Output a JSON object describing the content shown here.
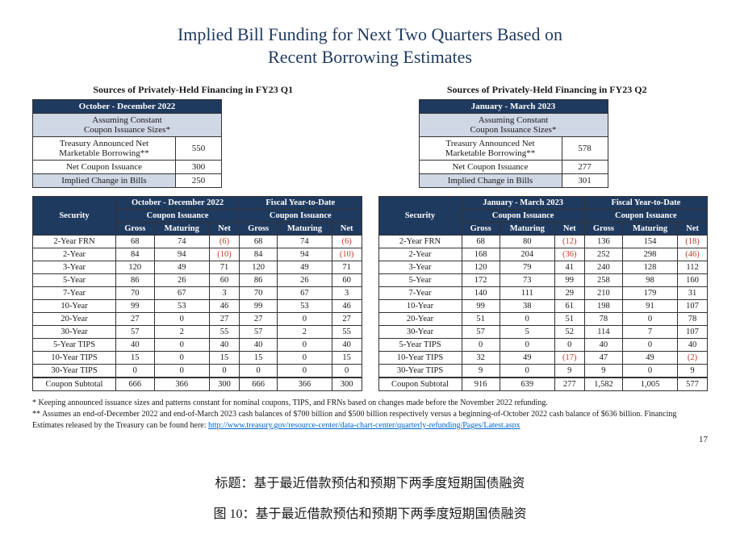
{
  "title_l1": "Implied Bill Funding for Next Two Quarters Based on",
  "title_l2": "Recent Borrowing Estimates",
  "left": {
    "section": "Sources of Privately-Held Financing in FY23 Q1",
    "period": "October - December 2022",
    "assume1": "Assuming Constant",
    "assume2": "Coupon Issuance Sizes*",
    "rows": [
      {
        "l": "Treasury Announced Net Marketable Borrowing**",
        "v": "550"
      },
      {
        "l": "Net Coupon Issuance",
        "v": "300"
      },
      {
        "l": "Implied Change in Bills",
        "v": "250"
      }
    ]
  },
  "right": {
    "section": "Sources of Privately-Held Financing in FY23 Q2",
    "period": "January - March 2023",
    "assume1": "Assuming Constant",
    "assume2": "Coupon Issuance Sizes*",
    "rows": [
      {
        "l": "Treasury Announced Net Marketable Borrowing**",
        "v": "578"
      },
      {
        "l": "Net Coupon Issuance",
        "v": "277"
      },
      {
        "l": "Implied Change in Bills",
        "v": "301"
      }
    ]
  },
  "tblL": {
    "h1a": "October - December 2022",
    "h1b": "Fiscal Year-to-Date",
    "h2": "Coupon Issuance",
    "sec": "Security",
    "g": "Gross",
    "m": "Maturing",
    "n": "Net",
    "rows": [
      {
        "s": "2-Year FRN",
        "g1": "68",
        "m1": "74",
        "n1": "(6)",
        "g2": "68",
        "m2": "74",
        "n2": "(6)"
      },
      {
        "s": "2-Year",
        "g1": "84",
        "m1": "94",
        "n1": "(10)",
        "g2": "84",
        "m2": "94",
        "n2": "(10)"
      },
      {
        "s": "3-Year",
        "g1": "120",
        "m1": "49",
        "n1": "71",
        "g2": "120",
        "m2": "49",
        "n2": "71"
      },
      {
        "s": "5-Year",
        "g1": "86",
        "m1": "26",
        "n1": "60",
        "g2": "86",
        "m2": "26",
        "n2": "60"
      },
      {
        "s": "7-Year",
        "g1": "70",
        "m1": "67",
        "n1": "3",
        "g2": "70",
        "m2": "67",
        "n2": "3"
      },
      {
        "s": "10-Year",
        "g1": "99",
        "m1": "53",
        "n1": "46",
        "g2": "99",
        "m2": "53",
        "n2": "46"
      },
      {
        "s": "20-Year",
        "g1": "27",
        "m1": "0",
        "n1": "27",
        "g2": "27",
        "m2": "0",
        "n2": "27"
      },
      {
        "s": "30-Year",
        "g1": "57",
        "m1": "2",
        "n1": "55",
        "g2": "57",
        "m2": "2",
        "n2": "55"
      },
      {
        "s": "5-Year TIPS",
        "g1": "40",
        "m1": "0",
        "n1": "40",
        "g2": "40",
        "m2": "0",
        "n2": "40"
      },
      {
        "s": "10-Year TIPS",
        "g1": "15",
        "m1": "0",
        "n1": "15",
        "g2": "15",
        "m2": "0",
        "n2": "15"
      },
      {
        "s": "30-Year TIPS",
        "g1": "0",
        "m1": "0",
        "n1": "0",
        "g2": "0",
        "m2": "0",
        "n2": "0"
      },
      {
        "s": "Coupon Subtotal",
        "g1": "666",
        "m1": "366",
        "n1": "300",
        "g2": "666",
        "m2": "366",
        "n2": "300"
      }
    ]
  },
  "tblR": {
    "h1a": "January - March 2023",
    "h1b": "Fiscal Year-to-Date",
    "h2": "Coupon Issuance",
    "sec": "Security",
    "g": "Gross",
    "m": "Maturing",
    "n": "Net",
    "rows": [
      {
        "s": "2-Year FRN",
        "g1": "68",
        "m1": "80",
        "n1": "(12)",
        "g2": "136",
        "m2": "154",
        "n2": "(18)"
      },
      {
        "s": "2-Year",
        "g1": "168",
        "m1": "204",
        "n1": "(36)",
        "g2": "252",
        "m2": "298",
        "n2": "(46)"
      },
      {
        "s": "3-Year",
        "g1": "120",
        "m1": "79",
        "n1": "41",
        "g2": "240",
        "m2": "128",
        "n2": "112"
      },
      {
        "s": "5-Year",
        "g1": "172",
        "m1": "73",
        "n1": "99",
        "g2": "258",
        "m2": "98",
        "n2": "160"
      },
      {
        "s": "7-Year",
        "g1": "140",
        "m1": "111",
        "n1": "29",
        "g2": "210",
        "m2": "179",
        "n2": "31"
      },
      {
        "s": "10-Year",
        "g1": "99",
        "m1": "38",
        "n1": "61",
        "g2": "198",
        "m2": "91",
        "n2": "107"
      },
      {
        "s": "20-Year",
        "g1": "51",
        "m1": "0",
        "n1": "51",
        "g2": "78",
        "m2": "0",
        "n2": "78"
      },
      {
        "s": "30-Year",
        "g1": "57",
        "m1": "5",
        "n1": "52",
        "g2": "114",
        "m2": "7",
        "n2": "107"
      },
      {
        "s": "5-Year TIPS",
        "g1": "0",
        "m1": "0",
        "n1": "0",
        "g2": "40",
        "m2": "0",
        "n2": "40"
      },
      {
        "s": "10-Year TIPS",
        "g1": "32",
        "m1": "49",
        "n1": "(17)",
        "g2": "47",
        "m2": "49",
        "n2": "(2)"
      },
      {
        "s": "30-Year TIPS",
        "g1": "9",
        "m1": "0",
        "n1": "9",
        "g2": "9",
        "m2": "0",
        "n2": "9"
      },
      {
        "s": "Coupon Subtotal",
        "g1": "916",
        "m1": "639",
        "n1": "277",
        "g2": "1,582",
        "m2": "1,005",
        "n2": "577"
      }
    ]
  },
  "foot1": "* Keeping announced issuance sizes and patterns constant for nominal coupons, TIPS, and FRNs based on changes made before the November 2022 refunding.",
  "foot2": "** Assumes an end-of-December 2022 and end-of-March 2023 cash balances of $700 billion and $500 billion respectively versus a beginning-of-October 2022 cash balance of $636 billion. Financing Estimates released by the Treasury can be found here: ",
  "foot_link": "http://www.treasury.gov/resource-center/data-chart-center/quarterly-refunding/Pages/Latest.aspx",
  "pagenum": "17",
  "cn1": "标题：基于最近借款预估和预期下两季度短期国债融资",
  "cn2": "图 10：基于最近借款预估和预期下两季度短期国债融资"
}
